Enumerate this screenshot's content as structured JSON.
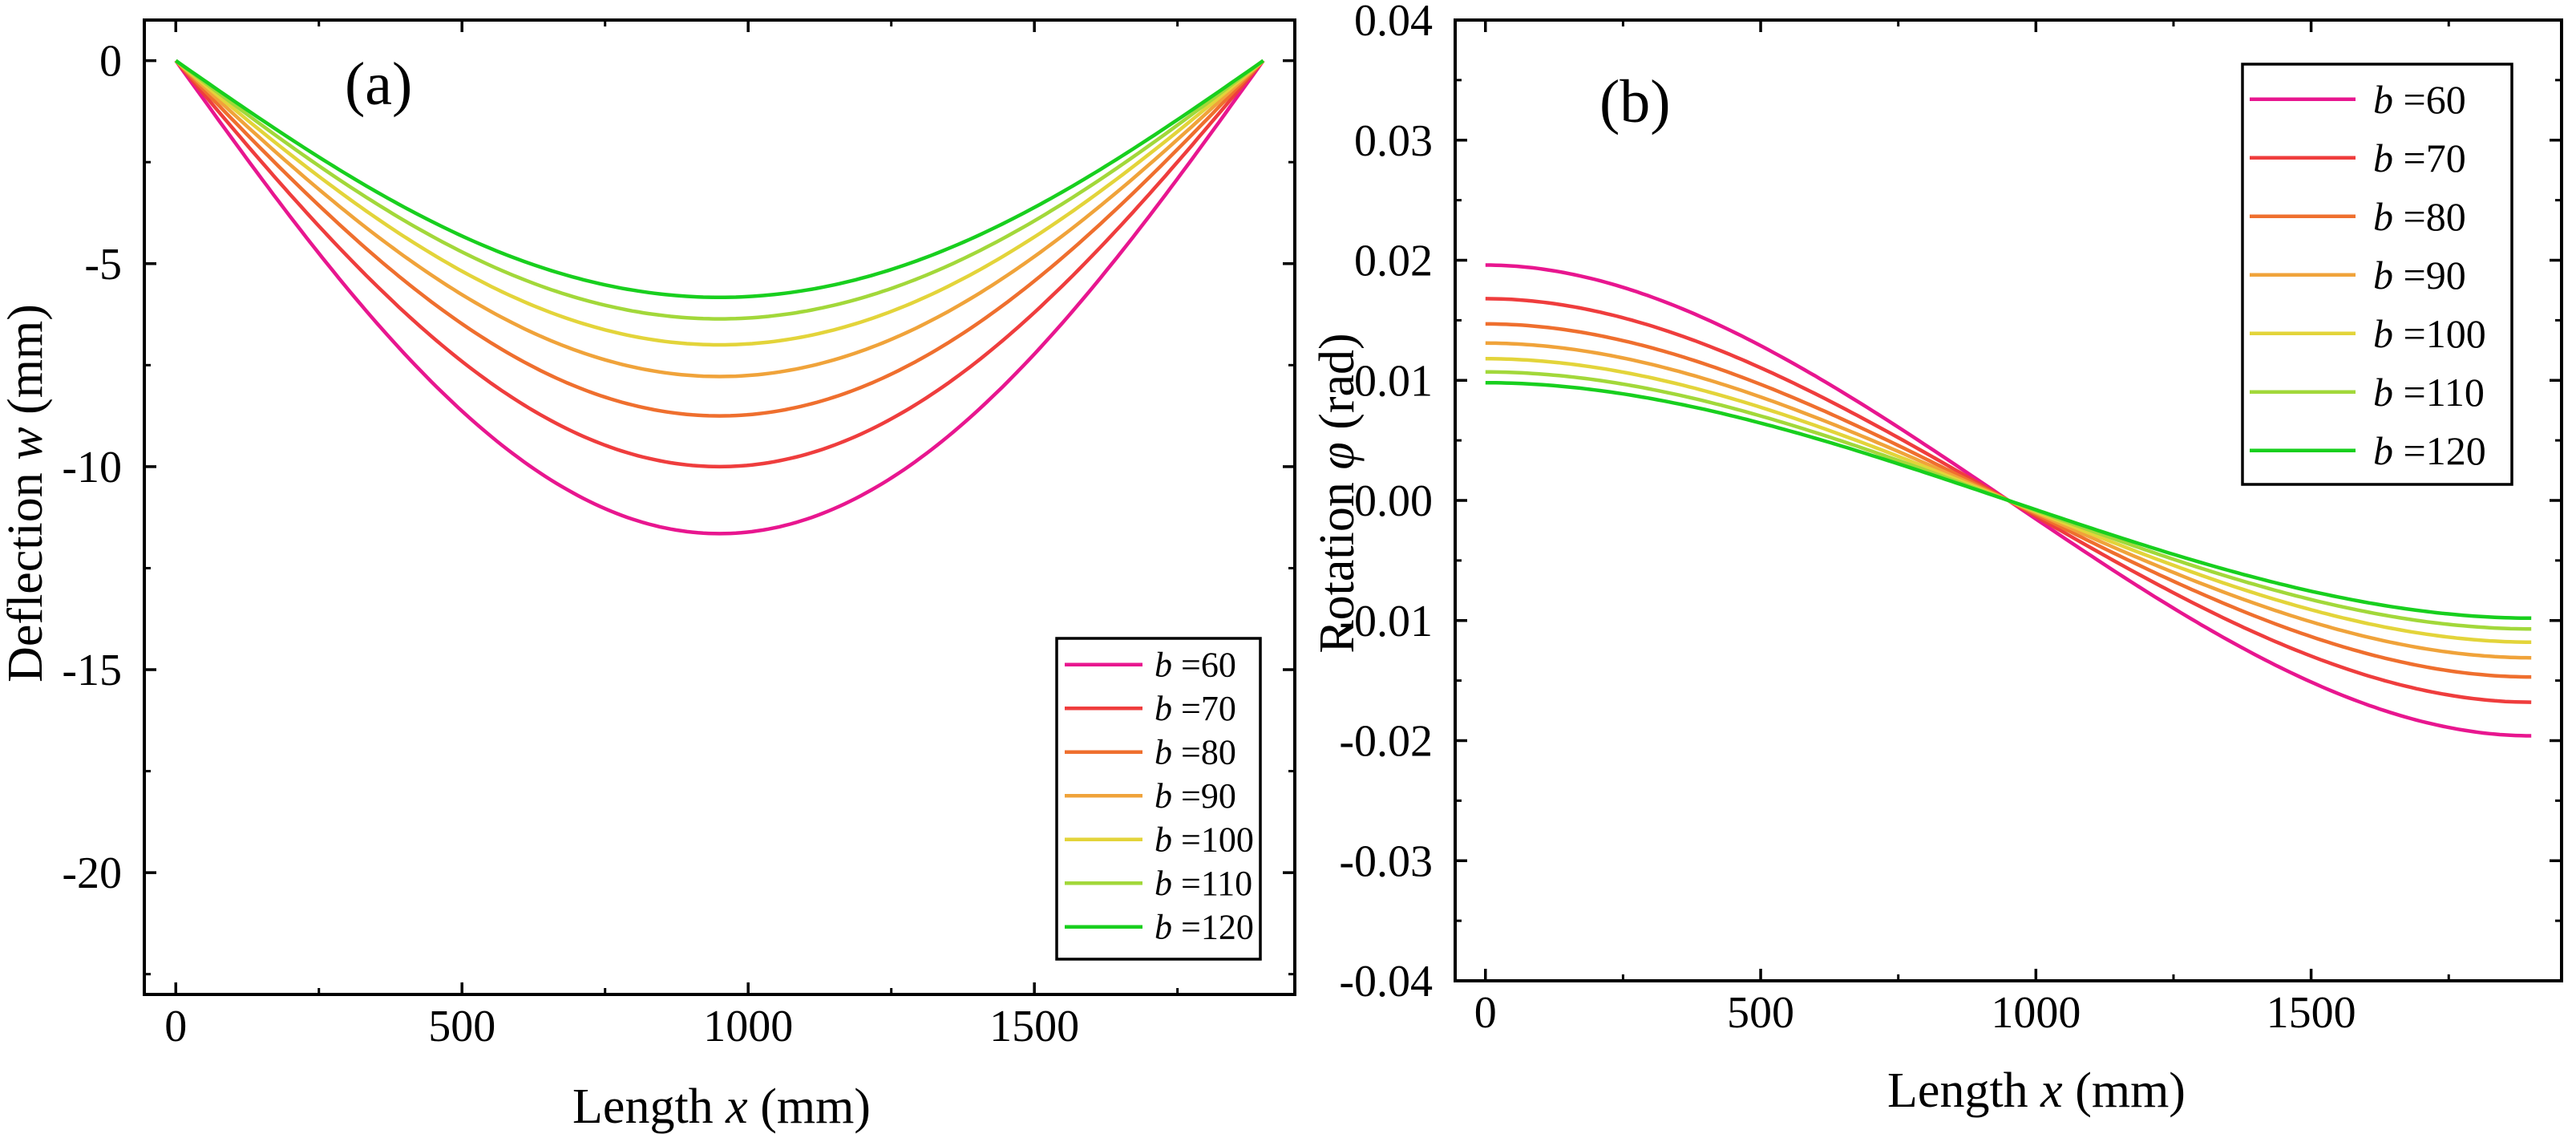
{
  "chart_data": [
    {
      "type": "line",
      "panel_label": "(a)",
      "title": "",
      "xlabel_prefix": "Length ",
      "xlabel_var": "x",
      "xlabel_suffix": " (mm)",
      "ylabel_prefix": "Deflection ",
      "ylabel_var": "w",
      "ylabel_suffix": " (mm)",
      "xlim": [
        -55,
        1955
      ],
      "ylim": [
        -23,
        1
      ],
      "xticks": [
        0,
        500,
        1000,
        1500
      ],
      "xtick_labels": [
        "0",
        "500",
        "1000",
        "1500"
      ],
      "yticks": [
        0,
        -5,
        -10,
        -15,
        -20
      ],
      "ytick_labels": [
        "0",
        "-5",
        "-10",
        "-15",
        "-20"
      ],
      "grid": false,
      "legend_position": "bottom-right",
      "curve_shape": "deflection",
      "x": [
        0,
        95,
        190,
        285,
        380,
        475,
        570,
        665,
        760,
        855,
        950,
        1045,
        1140,
        1235,
        1330,
        1425,
        1520,
        1615,
        1710,
        1805,
        1900
      ],
      "series": [
        {
          "name": "60",
          "label": "b =60",
          "color": "#e8168f",
          "min_value": -11.65
        },
        {
          "name": "70",
          "label": "b =70",
          "color": "#ef3d3d",
          "min_value": -10.0
        },
        {
          "name": "80",
          "label": "b =80",
          "color": "#ef6f2e",
          "min_value": -8.75
        },
        {
          "name": "90",
          "label": "b =90",
          "color": "#f0a33a",
          "min_value": -7.78
        },
        {
          "name": "100",
          "label": "b =100",
          "color": "#e3d43a",
          "min_value": -7.0
        },
        {
          "name": "110",
          "label": "b =110",
          "color": "#a2d83a",
          "min_value": -6.36
        },
        {
          "name": "120",
          "label": "b =120",
          "color": "#18cf1e",
          "min_value": -5.83
        }
      ]
    },
    {
      "type": "line",
      "panel_label": "(b)",
      "title": "",
      "xlabel_prefix": "Length ",
      "xlabel_var": "x",
      "xlabel_suffix": " (mm)",
      "ylabel_prefix": "Rotation ",
      "ylabel_var": "φ",
      "ylabel_suffix": " (rad)",
      "xlim": [
        -55,
        1955
      ],
      "ylim": [
        -0.04,
        0.04
      ],
      "xticks": [
        0,
        500,
        1000,
        1500
      ],
      "xtick_labels": [
        "0",
        "500",
        "1000",
        "1500"
      ],
      "yticks": [
        0.04,
        0.03,
        0.02,
        0.01,
        0.0,
        -0.01,
        -0.02,
        -0.03,
        -0.04
      ],
      "ytick_labels": [
        "0.04",
        "0.03",
        "0.02",
        "0.01",
        "0.00",
        "-0.01",
        "-0.02",
        "-0.03",
        "-0.04"
      ],
      "grid": false,
      "legend_position": "top-right",
      "curve_shape": "rotation",
      "x": [
        0,
        95,
        190,
        285,
        380,
        475,
        570,
        665,
        760,
        855,
        950,
        1045,
        1140,
        1235,
        1330,
        1425,
        1520,
        1615,
        1710,
        1805,
        1900
      ],
      "series": [
        {
          "name": "60",
          "label": "b =60",
          "color": "#e8168f",
          "end_value": 0.0196
        },
        {
          "name": "70",
          "label": "b =70",
          "color": "#ef3d3d",
          "end_value": 0.0168
        },
        {
          "name": "80",
          "label": "b =80",
          "color": "#ef6f2e",
          "end_value": 0.0147
        },
        {
          "name": "90",
          "label": "b =90",
          "color": "#f0a33a",
          "end_value": 0.0131
        },
        {
          "name": "100",
          "label": "b =100",
          "color": "#e3d43a",
          "end_value": 0.0118
        },
        {
          "name": "110",
          "label": "b =110",
          "color": "#a2d83a",
          "end_value": 0.0107
        },
        {
          "name": "120",
          "label": "b =120",
          "color": "#18cf1e",
          "end_value": 0.0098
        }
      ]
    }
  ]
}
